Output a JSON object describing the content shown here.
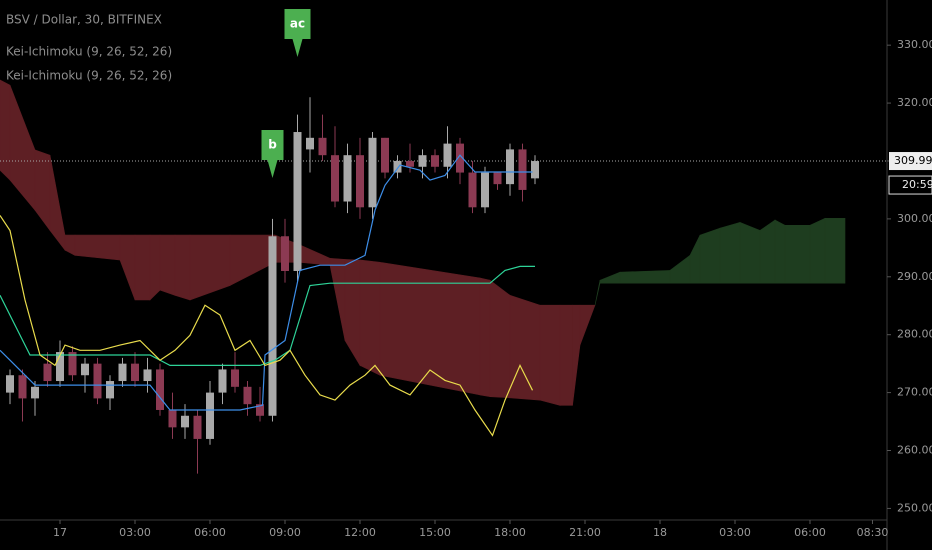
{
  "chart_data": {
    "type": "candlestick",
    "symbol": "BSV / Dollar, 30, BITFINEX",
    "indicators": [
      "Kei-Ichimoku (9, 26, 52, 26)",
      "Kei-Ichimoku (9, 26, 52, 26)"
    ],
    "x": [
      -2,
      -1.5,
      -1,
      -0.5,
      0,
      0.5,
      1,
      1.5,
      2,
      2.5,
      3,
      3.5,
      4,
      4.5,
      5,
      5.5,
      6,
      6.5,
      7,
      7.5,
      8,
      8.5,
      9,
      9.5,
      10,
      10.5,
      11,
      11.5,
      12,
      12.5,
      13,
      13.5,
      14,
      14.5,
      15,
      15.5,
      16,
      16.5,
      17,
      17.5,
      18,
      18.5,
      19
    ],
    "open": [
      270,
      273,
      269,
      275,
      272,
      277,
      273,
      275,
      269,
      272,
      275,
      272,
      274,
      267,
      264,
      266,
      262,
      270,
      274,
      271,
      268,
      266,
      297,
      291,
      312,
      314,
      311,
      303,
      311,
      302,
      314,
      308,
      310,
      309,
      311,
      309,
      313,
      308,
      302,
      308,
      306,
      312,
      307
    ],
    "high": [
      274,
      274,
      272,
      277,
      279,
      278,
      276,
      276,
      273,
      276,
      277,
      276,
      275,
      270,
      268,
      267,
      272,
      275,
      277,
      272,
      271,
      300,
      300,
      318,
      321,
      318,
      316,
      313,
      314,
      315,
      314,
      311,
      313,
      312,
      312,
      316,
      314,
      310,
      309,
      308,
      313,
      313,
      311
    ],
    "low": [
      268,
      265,
      266,
      271,
      271,
      272,
      270,
      268,
      267,
      271,
      271,
      270,
      266,
      262,
      262,
      256,
      261,
      268,
      270,
      266,
      265,
      265,
      289,
      289,
      308,
      310,
      302,
      301,
      300,
      300,
      307,
      307,
      308,
      307,
      308,
      307,
      306,
      301,
      301,
      305,
      304,
      303,
      306
    ],
    "close": [
      273,
      269,
      271,
      272,
      277,
      273,
      275,
      269,
      272,
      275,
      272,
      274,
      267,
      264,
      266,
      262,
      270,
      274,
      271,
      268,
      266,
      297,
      291,
      315,
      314,
      311,
      303,
      311,
      302,
      314,
      308,
      310,
      309,
      311,
      309,
      313,
      308,
      302,
      308,
      306,
      312,
      305,
      309.99
    ],
    "up_color": "#a9a9a9",
    "down_color": "#8c3a53",
    "lines": [
      {
        "color": "#3d8ee8",
        "x": [
          -2.4,
          -2,
          -1,
          3.6,
          4.4,
          7.2,
          8.1,
          8.2,
          9,
          9.6,
          10.4,
          11.4,
          12.2,
          12.6,
          13,
          13.6,
          14.4,
          14.8,
          15.4,
          16,
          16.6,
          18.9
        ],
        "values": [
          277.3,
          275.6,
          271.3,
          271.3,
          267.0,
          267.0,
          267.8,
          276.5,
          279.0,
          291.1,
          292.0,
          292.0,
          293.7,
          301.5,
          305.8,
          309.3,
          308.4,
          306.7,
          307.5,
          311.0,
          308.1,
          308.1
        ]
      },
      {
        "color": "#2ed398",
        "x": [
          -2.4,
          -1.2,
          3.6,
          4.4,
          8,
          8.6,
          9.2,
          10,
          10.8,
          17.2,
          17.8,
          18.4,
          19
        ],
        "values": [
          286.8,
          276.5,
          276.5,
          274.7,
          274.7,
          275.6,
          277.3,
          288.5,
          288.9,
          288.9,
          291.1,
          291.8,
          291.8
        ]
      },
      {
        "color": "#e9dc4c",
        "x": [
          -2.4,
          -2,
          -1.4,
          -0.8,
          -0.2,
          0.2,
          0.8,
          1.6,
          2.4,
          3.2,
          4,
          4.6,
          5.2,
          5.8,
          6.4,
          7,
          7.6,
          8.2,
          8.8,
          9.2,
          9.8,
          10.4,
          11,
          11.6,
          12.2,
          12.6,
          13.2,
          14,
          14.8,
          15.4,
          16,
          16.6,
          17.3,
          17.8,
          18.4,
          18.9
        ],
        "values": [
          300.6,
          298.0,
          286.0,
          276.5,
          274.7,
          278.2,
          277.3,
          277.3,
          278.2,
          279.0,
          275.6,
          277.3,
          279.9,
          285.1,
          283.4,
          277.3,
          279.0,
          274.7,
          275.6,
          277.3,
          273.0,
          269.6,
          268.7,
          271.3,
          273.0,
          274.7,
          271.3,
          269.6,
          273.9,
          272.1,
          271.3,
          267.0,
          262.6,
          268.7,
          274.7,
          270.4
        ]
      }
    ],
    "cloud": {
      "up_color": "#1e3d1f",
      "down_color": "#5e1f24",
      "x": [
        -2.4,
        -2,
        -1,
        -0.4,
        0.2,
        0.6,
        2.4,
        3,
        3.6,
        4,
        4.6,
        5.2,
        6.8,
        8.6,
        9.6,
        10.8,
        11.4,
        12,
        12.8,
        16.8,
        17.2,
        18,
        19.2,
        20,
        20.5,
        20.8,
        21.4,
        21.6,
        22.4,
        24.4,
        25.2,
        25.6,
        26.4,
        27.2,
        28,
        28.6,
        29,
        30,
        30.6,
        31.4
      ],
      "span_a": [
        308.4,
        306.7,
        301.5,
        298.0,
        294.6,
        293.7,
        292.9,
        286.0,
        286.0,
        287.7,
        286.8,
        286.0,
        288.5,
        292.5,
        292.5,
        292.0,
        279.0,
        274.7,
        273.0,
        269.6,
        269.3,
        269.1,
        268.7,
        267.8,
        267.8,
        278.2,
        285.1,
        289.4,
        290.8,
        291.1,
        293.7,
        297.2,
        298.4,
        299.4,
        298.0,
        299.8,
        298.9,
        298.9,
        300.1,
        300.1
      ],
      "span_b": [
        324.0,
        323.1,
        311.9,
        311.0,
        297.2,
        297.2,
        297.2,
        297.2,
        297.2,
        297.2,
        297.2,
        297.2,
        297.2,
        297.2,
        295.5,
        293.2,
        293.0,
        292.9,
        292.5,
        289.8,
        289.4,
        286.8,
        285.1,
        285.1,
        285.1,
        285.1,
        285.1,
        288.9,
        288.9,
        288.9,
        288.9,
        288.9,
        288.9,
        288.9,
        288.9,
        288.9,
        288.9,
        288.9,
        288.9,
        288.9
      ]
    },
    "markers": [
      {
        "text": "b",
        "x": 8.5
      },
      {
        "text": "ac",
        "x": 9.5
      }
    ],
    "marker_color": "#4caf50",
    "last_price": {
      "value": 309.99,
      "label": "309.990"
    },
    "countdown": "20:59",
    "xlim": [
      -2.4,
      33
    ],
    "ylim": [
      248,
      337.8
    ],
    "xticks": [
      {
        "value": 0,
        "label": "17"
      },
      {
        "value": 3,
        "label": "03:00"
      },
      {
        "value": 6,
        "label": "06:00"
      },
      {
        "value": 9,
        "label": "09:00"
      },
      {
        "value": 12,
        "label": "12:00"
      },
      {
        "value": 15,
        "label": "15:00"
      },
      {
        "value": 18,
        "label": "18:00"
      },
      {
        "value": 21,
        "label": "21:00"
      },
      {
        "value": 24,
        "label": "18"
      },
      {
        "value": 27,
        "label": "03:00"
      },
      {
        "value": 30,
        "label": "06:00"
      },
      {
        "value": 32.5,
        "label": "08:30"
      }
    ],
    "yticks": [
      {
        "value": 250,
        "label": "250.000"
      },
      {
        "value": 260,
        "label": "260.000"
      },
      {
        "value": 270,
        "label": "270.000"
      },
      {
        "value": 280,
        "label": "280.000"
      },
      {
        "value": 290,
        "label": "290.000"
      },
      {
        "value": 300,
        "label": "300.000"
      },
      {
        "value": 310,
        "label": "310.000"
      },
      {
        "value": 320,
        "label": "320.000"
      },
      {
        "value": 330,
        "label": "330.000"
      }
    ],
    "grid": false
  }
}
